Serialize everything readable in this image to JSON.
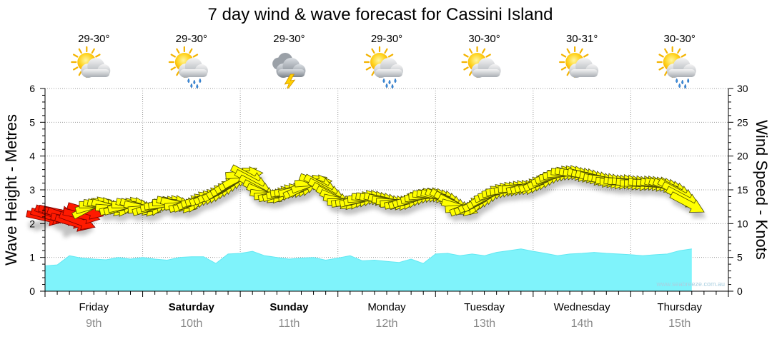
{
  "chart_data": {
    "type": "area",
    "title": "7 day wind & wave forecast for Cassini Island",
    "ylabel": "Wave Height - Metres",
    "y2label": "Wind Speed - Knots",
    "ylim": [
      0,
      6
    ],
    "y2lim": [
      0,
      30
    ],
    "yticks": [
      "0",
      "1",
      "2",
      "3",
      "4",
      "5",
      "6"
    ],
    "y2ticks": [
      "0",
      "5",
      "10",
      "15",
      "20",
      "25",
      "30"
    ],
    "grid": true,
    "watermark": "www.seabreeze.com.au",
    "days": [
      {
        "day": "Friday",
        "date": "9th",
        "bold": false,
        "temp": "29-30°",
        "weather": "sun-cloud"
      },
      {
        "day": "Saturday",
        "date": "10th",
        "bold": true,
        "temp": "29-30°",
        "weather": "sun-cloud-showers"
      },
      {
        "day": "Sunday",
        "date": "11th",
        "bold": true,
        "temp": "29-30°",
        "weather": "cloud-storm"
      },
      {
        "day": "Monday",
        "date": "12th",
        "bold": false,
        "temp": "29-30°",
        "weather": "sun-cloud-showers"
      },
      {
        "day": "Tuesday",
        "date": "13th",
        "bold": false,
        "temp": "30-30°",
        "weather": "sun-cloud"
      },
      {
        "day": "Wednesday",
        "date": "14th",
        "bold": false,
        "temp": "30-31°",
        "weather": "sun-cloud"
      },
      {
        "day": "Thursday",
        "date": "15th",
        "bold": false,
        "temp": "30-30°",
        "weather": "sun-cloud-showers"
      }
    ],
    "series": [
      {
        "key": "wave",
        "color": "#7ff3fb",
        "step_hours": 3,
        "values": [
          0.75,
          0.78,
          1.05,
          0.98,
          0.95,
          0.93,
          1.0,
          0.95,
          1.0,
          0.95,
          0.92,
          1.0,
          1.02,
          1.02,
          0.82,
          1.1,
          1.12,
          1.18,
          1.05,
          1.0,
          0.95,
          0.98,
          1.0,
          0.92,
          0.98,
          1.05,
          0.9,
          0.92,
          0.88,
          0.85,
          0.95,
          0.82,
          1.1,
          1.12,
          1.05,
          1.1,
          1.05,
          1.15,
          1.2,
          1.25,
          1.18,
          1.12,
          1.05,
          1.1,
          1.12,
          1.15,
          1.12,
          1.1,
          1.08,
          1.05,
          1.08,
          1.1,
          1.2,
          1.25
        ]
      },
      {
        "key": "wind",
        "step_hours": 1,
        "colors": {
          "light": "#ffff00",
          "strong": "#ff1a00"
        },
        "knots": [
          10.9,
          11.1,
          11.4,
          11.7,
          11.3,
          11.0,
          10.5,
          10.1,
          10.4,
          11.2,
          11.9,
          12.4,
          12.7,
          12.8,
          12.7,
          12.6,
          12.4,
          12.2,
          12.3,
          12.5,
          12.7,
          12.8,
          12.7,
          12.5,
          12.3,
          12.2,
          12.4,
          12.6,
          12.8,
          12.9,
          13.0,
          13.1,
          13.0,
          12.8,
          12.7,
          12.9,
          13.1,
          13.4,
          13.6,
          13.8,
          14.0,
          14.3,
          14.6,
          14.9,
          15.3,
          15.7,
          16.1,
          16.5,
          16.9,
          17.3,
          17.0,
          16.3,
          15.5,
          14.8,
          14.4,
          14.2,
          14.2,
          14.3,
          14.5,
          14.7,
          14.8,
          14.9,
          15.0,
          15.2,
          15.6,
          15.9,
          16.1,
          16.0,
          15.6,
          15.0,
          14.4,
          13.9,
          13.5,
          13.3,
          13.2,
          13.3,
          13.4,
          13.5,
          13.7,
          13.8,
          13.8,
          13.7,
          13.6,
          13.5,
          13.3,
          13.2,
          13.1,
          13.1,
          13.2,
          13.4,
          13.6,
          13.8,
          14.0,
          14.1,
          14.2,
          14.2,
          14.1,
          14.0,
          13.8,
          13.5,
          13.1,
          12.7,
          12.4,
          12.3,
          12.5,
          12.8,
          13.1,
          13.4,
          13.8,
          14.2,
          14.5,
          14.7,
          14.9,
          15.0,
          15.1,
          15.2,
          15.3,
          15.3,
          15.4,
          15.6,
          15.8,
          16.0,
          16.3,
          16.6,
          16.9,
          17.1,
          17.3,
          17.4,
          17.5,
          17.5,
          17.4,
          17.3,
          17.2,
          17.1,
          16.9,
          16.8,
          16.6,
          16.5,
          16.4,
          16.3,
          16.2,
          16.2,
          16.2,
          16.1,
          16.1,
          16.0,
          16.0,
          16.0,
          16.0,
          15.9,
          15.9,
          15.8,
          15.7,
          15.5,
          15.3,
          15.0,
          14.5,
          13.8,
          13.0
        ]
      }
    ]
  }
}
